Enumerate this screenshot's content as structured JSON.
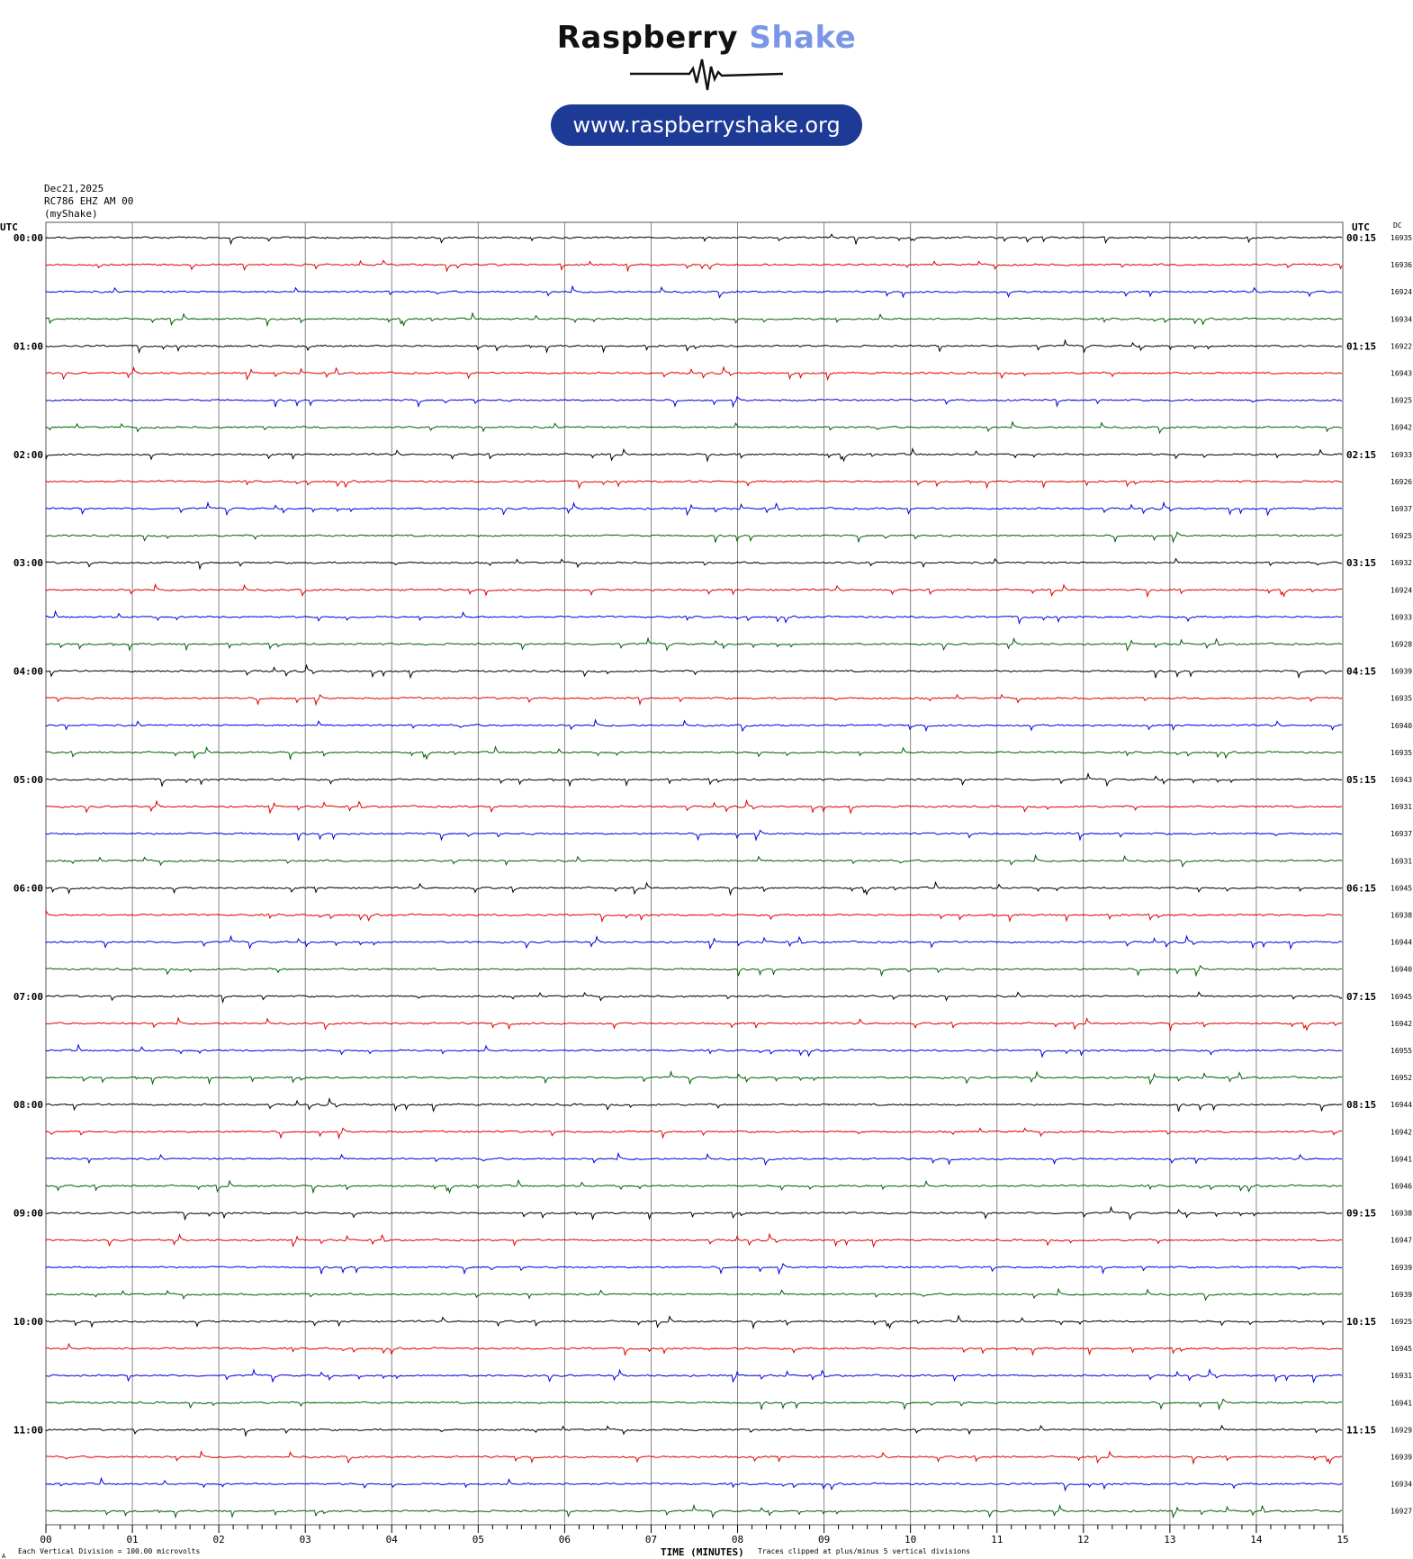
{
  "brand": {
    "name_part1": "Raspberry",
    "name_part2": "Shake",
    "url": "www.raspberryshake.org",
    "color_dark": "#111111",
    "color_accent": "#7b96e6",
    "pill_color": "#1d3a96"
  },
  "header": {
    "date": "Dec21,2025",
    "station": "RC786 EHZ AM 00",
    "source": "(myShake)"
  },
  "chart_data": {
    "type": "line",
    "subtype": "helicorder",
    "left_axis_label": "UTC",
    "right_axis_label": "UTC",
    "dc_label": "DC",
    "xlabel": "TIME (MINUTES)",
    "x_ticks": [
      "00",
      "01",
      "02",
      "03",
      "04",
      "05",
      "06",
      "07",
      "08",
      "09",
      "10",
      "11",
      "12",
      "13",
      "14",
      "15"
    ],
    "xlim": [
      0,
      15
    ],
    "left_hour_labels": [
      "00:00",
      "01:00",
      "02:00",
      "03:00",
      "04:00",
      "05:00",
      "06:00",
      "07:00",
      "08:00",
      "09:00",
      "10:00",
      "11:00"
    ],
    "right_hour_labels": [
      "00:15",
      "01:15",
      "02:15",
      "03:15",
      "04:15",
      "05:15",
      "06:15",
      "07:15",
      "08:15",
      "09:15",
      "10:15",
      "11:15"
    ],
    "traces_per_hour": 4,
    "trace_colors": [
      "#000000",
      "#e00000",
      "#0000e0",
      "#006000"
    ],
    "dc_values": [
      "16935",
      "16936",
      "16924",
      "16934",
      "16922",
      "16943",
      "16925",
      "16942",
      "16933",
      "16926",
      "16937",
      "16925",
      "16932",
      "16924",
      "16933",
      "16928",
      "16939",
      "16935",
      "16940",
      "16935",
      "16943",
      "16931",
      "16937",
      "16931",
      "16945",
      "16938",
      "16944",
      "16940",
      "16945",
      "16942",
      "16955",
      "16952",
      "16944",
      "16942",
      "16941",
      "16946",
      "16938",
      "16947",
      "16939",
      "16939",
      "16925",
      "16945",
      "16931",
      "16941",
      "16929",
      "16939",
      "16934",
      "16927"
    ],
    "grid": true,
    "footer_left": "Each Vertical Division =  100.00 microvolts",
    "footer_right": "Traces clipped at plus/minus 5 vertical divisions",
    "footer_corner": "A"
  }
}
